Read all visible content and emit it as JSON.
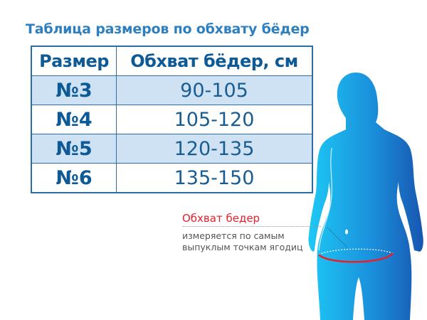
{
  "title": "Таблица размеров по обхвату бёдер",
  "table": {
    "headers": [
      "Размер",
      "Обхват бёдер, см"
    ],
    "rows": [
      {
        "size": "№3",
        "range": "90-105"
      },
      {
        "size": "№4",
        "range": "105-120"
      },
      {
        "size": "№5",
        "range": "120-135"
      },
      {
        "size": "№6",
        "range": "135-150"
      }
    ]
  },
  "annotation": {
    "title": "Обхват бедер",
    "description_line1": "измеряется по самым",
    "description_line2": "выпуклым точкам ягодиц"
  },
  "colors": {
    "title": "#2d7fbf",
    "table_text": "#0d5a96",
    "row_shade": "#cfe2f3",
    "accent_red": "#e8202a",
    "figure_light": "#1ec8f5",
    "figure_dark": "#1856b0"
  }
}
